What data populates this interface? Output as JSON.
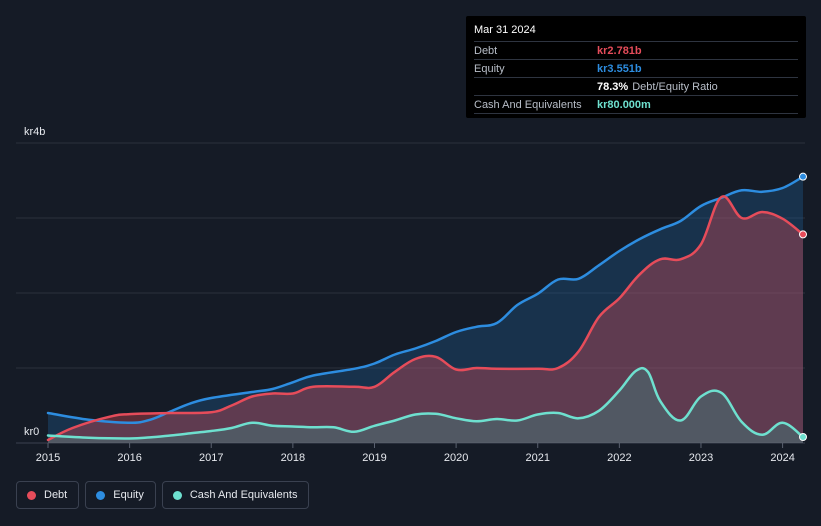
{
  "tooltip": {
    "date": "Mar 31 2024",
    "rows": [
      {
        "label": "Debt",
        "value": "kr2.781b",
        "color": "#e64c5a"
      },
      {
        "label": "Equity",
        "value": "kr3.551b",
        "color": "#2d8de0"
      },
      {
        "label": "",
        "value": "78.3%",
        "sub": "Debt/Equity Ratio",
        "color": "#ffffff"
      },
      {
        "label": "Cash And Equivalents",
        "value": "kr80.000m",
        "color": "#6ee0cf"
      }
    ]
  },
  "legend": [
    {
      "label": "Debt",
      "color": "#e64c5a"
    },
    {
      "label": "Equity",
      "color": "#2d8de0"
    },
    {
      "label": "Cash And Equivalents",
      "color": "#6ee0cf"
    }
  ],
  "chart_data": {
    "type": "area",
    "title": "",
    "xlabel": "",
    "ylabel": "",
    "y_unit_label_top": "kr4b",
    "y_unit_label_bottom": "kr0",
    "ylim": [
      0,
      4000
    ],
    "xlim": [
      2015.0,
      2024.25
    ],
    "gridlines": [
      0,
      1000,
      2000,
      3000,
      4000
    ],
    "x_ticks": [
      {
        "value": 2015,
        "label": "2015"
      },
      {
        "value": 2016,
        "label": "2016"
      },
      {
        "value": 2017,
        "label": "2017"
      },
      {
        "value": 2018,
        "label": "2018"
      },
      {
        "value": 2019,
        "label": "2019"
      },
      {
        "value": 2020,
        "label": "2020"
      },
      {
        "value": 2021,
        "label": "2021"
      },
      {
        "value": 2022,
        "label": "2022"
      },
      {
        "value": 2023,
        "label": "2023"
      },
      {
        "value": 2024,
        "label": "2024"
      }
    ],
    "series": [
      {
        "name": "Debt",
        "color": "#e64c5a",
        "fill": "#e64c5a",
        "points": [
          [
            2015.0,
            40
          ],
          [
            2015.3,
            200
          ],
          [
            2015.75,
            350
          ],
          [
            2016.0,
            385
          ],
          [
            2016.5,
            400
          ],
          [
            2017.0,
            410
          ],
          [
            2017.25,
            500
          ],
          [
            2017.5,
            620
          ],
          [
            2017.75,
            660
          ],
          [
            2018.0,
            660
          ],
          [
            2018.25,
            750
          ],
          [
            2018.75,
            750
          ],
          [
            2019.0,
            750
          ],
          [
            2019.25,
            950
          ],
          [
            2019.5,
            1120
          ],
          [
            2019.75,
            1150
          ],
          [
            2020.0,
            980
          ],
          [
            2020.25,
            1000
          ],
          [
            2020.5,
            990
          ],
          [
            2021.0,
            990
          ],
          [
            2021.25,
            1000
          ],
          [
            2021.5,
            1220
          ],
          [
            2021.75,
            1680
          ],
          [
            2022.0,
            1930
          ],
          [
            2022.25,
            2250
          ],
          [
            2022.5,
            2450
          ],
          [
            2022.75,
            2450
          ],
          [
            2023.0,
            2650
          ],
          [
            2023.25,
            3280
          ],
          [
            2023.5,
            3000
          ],
          [
            2023.75,
            3080
          ],
          [
            2024.0,
            2990
          ],
          [
            2024.25,
            2781
          ]
        ]
      },
      {
        "name": "Equity",
        "color": "#2d8de0",
        "fill": "#1f5f96",
        "points": [
          [
            2015.0,
            400
          ],
          [
            2015.5,
            310
          ],
          [
            2016.0,
            270
          ],
          [
            2016.25,
            310
          ],
          [
            2016.5,
            420
          ],
          [
            2016.75,
            530
          ],
          [
            2017.0,
            600
          ],
          [
            2017.5,
            680
          ],
          [
            2017.75,
            720
          ],
          [
            2018.0,
            810
          ],
          [
            2018.25,
            900
          ],
          [
            2018.75,
            990
          ],
          [
            2019.0,
            1060
          ],
          [
            2019.25,
            1180
          ],
          [
            2019.5,
            1260
          ],
          [
            2019.75,
            1360
          ],
          [
            2020.0,
            1480
          ],
          [
            2020.25,
            1550
          ],
          [
            2020.5,
            1600
          ],
          [
            2020.75,
            1840
          ],
          [
            2021.0,
            1990
          ],
          [
            2021.25,
            2180
          ],
          [
            2021.5,
            2190
          ],
          [
            2021.75,
            2370
          ],
          [
            2022.0,
            2560
          ],
          [
            2022.25,
            2720
          ],
          [
            2022.5,
            2850
          ],
          [
            2022.75,
            2960
          ],
          [
            2023.0,
            3160
          ],
          [
            2023.25,
            3270
          ],
          [
            2023.5,
            3370
          ],
          [
            2023.75,
            3350
          ],
          [
            2024.0,
            3400
          ],
          [
            2024.25,
            3551
          ]
        ]
      },
      {
        "name": "Cash And Equivalents",
        "color": "#6ee0cf",
        "fill": "#3a8f87",
        "points": [
          [
            2015.0,
            100
          ],
          [
            2015.5,
            70
          ],
          [
            2016.0,
            60
          ],
          [
            2016.25,
            75
          ],
          [
            2016.5,
            100
          ],
          [
            2016.75,
            130
          ],
          [
            2017.0,
            160
          ],
          [
            2017.25,
            200
          ],
          [
            2017.5,
            270
          ],
          [
            2017.75,
            230
          ],
          [
            2018.0,
            220
          ],
          [
            2018.25,
            210
          ],
          [
            2018.5,
            210
          ],
          [
            2018.75,
            150
          ],
          [
            2019.0,
            230
          ],
          [
            2019.25,
            300
          ],
          [
            2019.5,
            380
          ],
          [
            2019.75,
            390
          ],
          [
            2020.0,
            330
          ],
          [
            2020.25,
            290
          ],
          [
            2020.5,
            320
          ],
          [
            2020.75,
            300
          ],
          [
            2021.0,
            380
          ],
          [
            2021.25,
            400
          ],
          [
            2021.5,
            330
          ],
          [
            2021.75,
            430
          ],
          [
            2022.0,
            700
          ],
          [
            2022.2,
            960
          ],
          [
            2022.35,
            950
          ],
          [
            2022.5,
            560
          ],
          [
            2022.75,
            300
          ],
          [
            2023.0,
            620
          ],
          [
            2023.25,
            670
          ],
          [
            2023.5,
            280
          ],
          [
            2023.75,
            110
          ],
          [
            2024.0,
            270
          ],
          [
            2024.25,
            80
          ]
        ]
      }
    ]
  }
}
